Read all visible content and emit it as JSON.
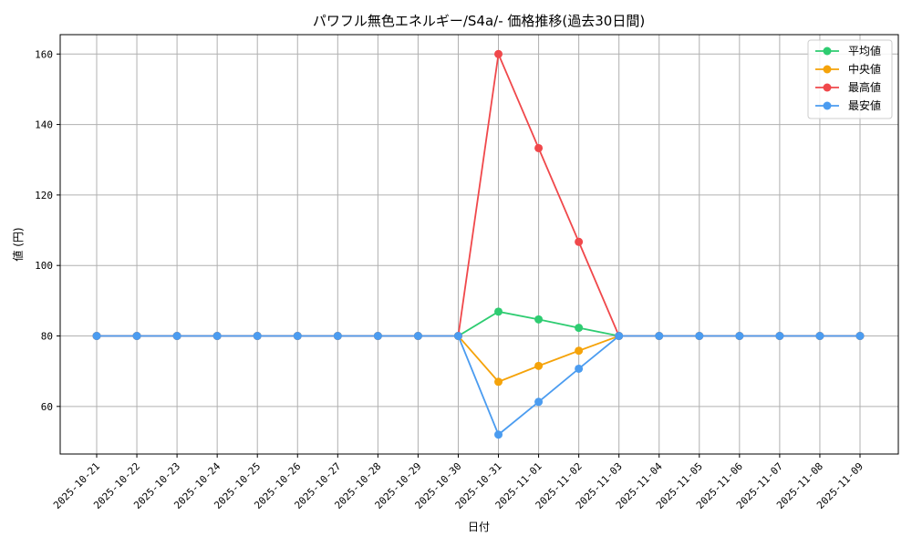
{
  "chart_data": {
    "type": "line",
    "title": "パワフル無色エネルギー/S4a/- 価格推移(過去30日間)",
    "xlabel": "日付",
    "ylabel": "値 (円)",
    "categories": [
      "2025-10-21",
      "2025-10-22",
      "2025-10-23",
      "2025-10-24",
      "2025-10-25",
      "2025-10-26",
      "2025-10-27",
      "2025-10-28",
      "2025-10-29",
      "2025-10-30",
      "2025-10-31",
      "2025-11-01",
      "2025-11-02",
      "2025-11-03",
      "2025-11-04",
      "2025-11-05",
      "2025-11-06",
      "2025-11-07",
      "2025-11-08",
      "2025-11-09"
    ],
    "ylim": [
      46.5,
      165.5
    ],
    "yticks": [
      60,
      80,
      100,
      120,
      140,
      160
    ],
    "grid": true,
    "legend_position": "top-right",
    "series": [
      {
        "name": "平均値",
        "color": "#2ecc71",
        "values": [
          80,
          80,
          80,
          80,
          80,
          80,
          80,
          80,
          80,
          80,
          86.9,
          84.7,
          82.3,
          80,
          80,
          80,
          80,
          80,
          80,
          80
        ]
      },
      {
        "name": "中央値",
        "color": "#f5a30a",
        "values": [
          80,
          80,
          80,
          80,
          80,
          80,
          80,
          80,
          80,
          80,
          67,
          71.5,
          75.8,
          80,
          80,
          80,
          80,
          80,
          80,
          80
        ]
      },
      {
        "name": "最高値",
        "color": "#f0484b",
        "values": [
          80,
          80,
          80,
          80,
          80,
          80,
          80,
          80,
          80,
          80,
          160,
          133.3,
          106.7,
          80,
          80,
          80,
          80,
          80,
          80,
          80
        ]
      },
      {
        "name": "最安値",
        "color": "#4b9cf0",
        "values": [
          80,
          80,
          80,
          80,
          80,
          80,
          80,
          80,
          80,
          80,
          52,
          61.3,
          70.7,
          80,
          80,
          80,
          80,
          80,
          80,
          80
        ]
      }
    ]
  }
}
